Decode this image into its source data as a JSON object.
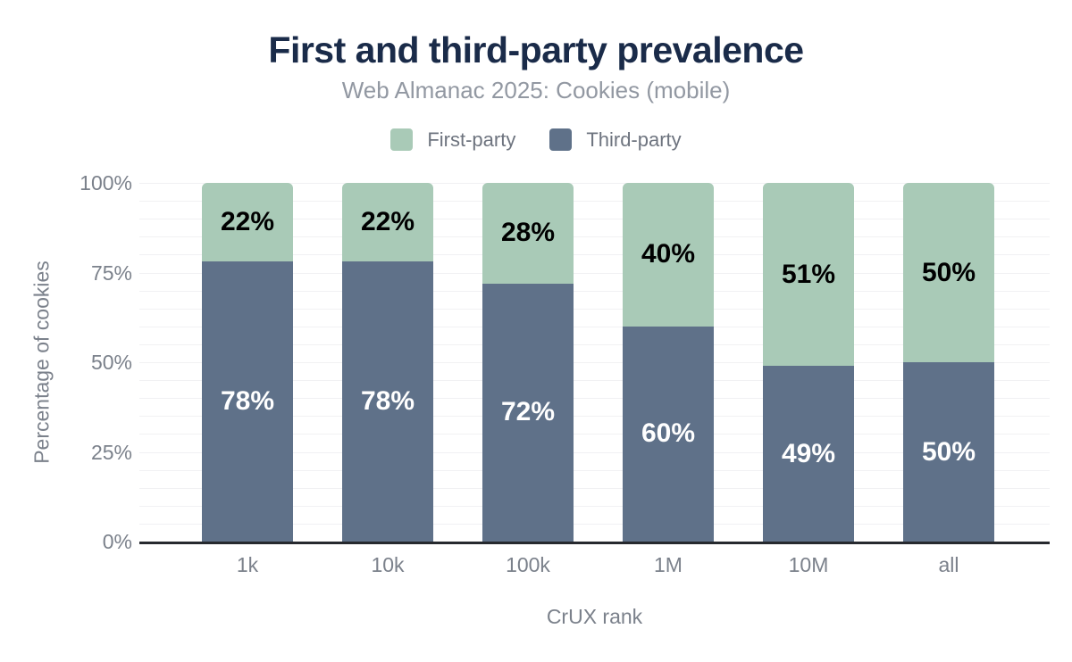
{
  "chart_data": {
    "type": "bar",
    "stacked": true,
    "title": "First and third-party prevalence",
    "subtitle": "Web Almanac 2025: Cookies (mobile)",
    "xlabel": "CrUX rank",
    "ylabel": "Percentage of cookies",
    "categories": [
      "1k",
      "10k",
      "100k",
      "1M",
      "10M",
      "all"
    ],
    "series": [
      {
        "name": "First-party",
        "color": "#a9cab7",
        "values": [
          22,
          22,
          28,
          40,
          51,
          50
        ],
        "labels": [
          "22%",
          "22%",
          "28%",
          "40%",
          "51%",
          "50%"
        ]
      },
      {
        "name": "Third-party",
        "color": "#5f7189",
        "values": [
          78,
          78,
          72,
          60,
          49,
          50
        ],
        "labels": [
          "78%",
          "78%",
          "72%",
          "60%",
          "49%",
          "50%"
        ]
      }
    ],
    "y_ticks": [
      {
        "value": 0,
        "label": "0%"
      },
      {
        "value": 25,
        "label": "25%"
      },
      {
        "value": 50,
        "label": "50%"
      },
      {
        "value": 75,
        "label": "75%"
      },
      {
        "value": 100,
        "label": "100%"
      }
    ],
    "ylim": [
      0,
      100
    ],
    "grid": "horizontal, minor lines every 5%",
    "legend_position": "top"
  },
  "colors": {
    "title": "#1a2b49",
    "subtitle_text": "#9298a2",
    "axis_text": "#7b818b",
    "legend_text": "#6e747f",
    "first_party": "#a9cab7",
    "third_party": "#5f7189",
    "gridline": "#f1f1f3",
    "axis_line": "#26292e"
  }
}
